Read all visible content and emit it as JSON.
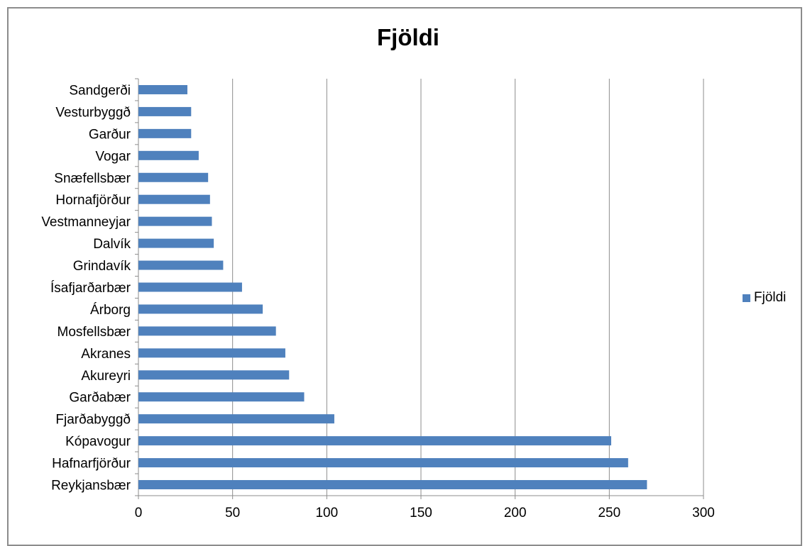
{
  "chart_data": {
    "type": "bar",
    "orientation": "horizontal",
    "title": "Fjöldi",
    "categories": [
      "Sandgerði",
      "Vesturbyggð",
      "Garður",
      "Vogar",
      "Snæfellsbær",
      "Hornafjörður",
      "Vestmanneyjar",
      "Dalvík",
      "Grindavík",
      "Ísafjarðarbær",
      "Árborg",
      "Mosfellsbær",
      "Akranes",
      "Akureyri",
      "Garðabær",
      "Fjarðabyggð",
      "Kópavogur",
      "Hafnarfjörður",
      "Reykjansbær"
    ],
    "series": [
      {
        "name": "Fjöldi",
        "values": [
          26,
          28,
          28,
          32,
          37,
          38,
          39,
          40,
          45,
          55,
          66,
          73,
          78,
          80,
          88,
          104,
          251,
          260,
          270
        ]
      }
    ],
    "xlim": [
      0,
      300
    ],
    "xticks": [
      0,
      50,
      100,
      150,
      200,
      250,
      300
    ],
    "xlabel": "",
    "ylabel": "",
    "grid": "vertical major gridlines",
    "legend": "right",
    "bar_color": "#4f81bd"
  }
}
